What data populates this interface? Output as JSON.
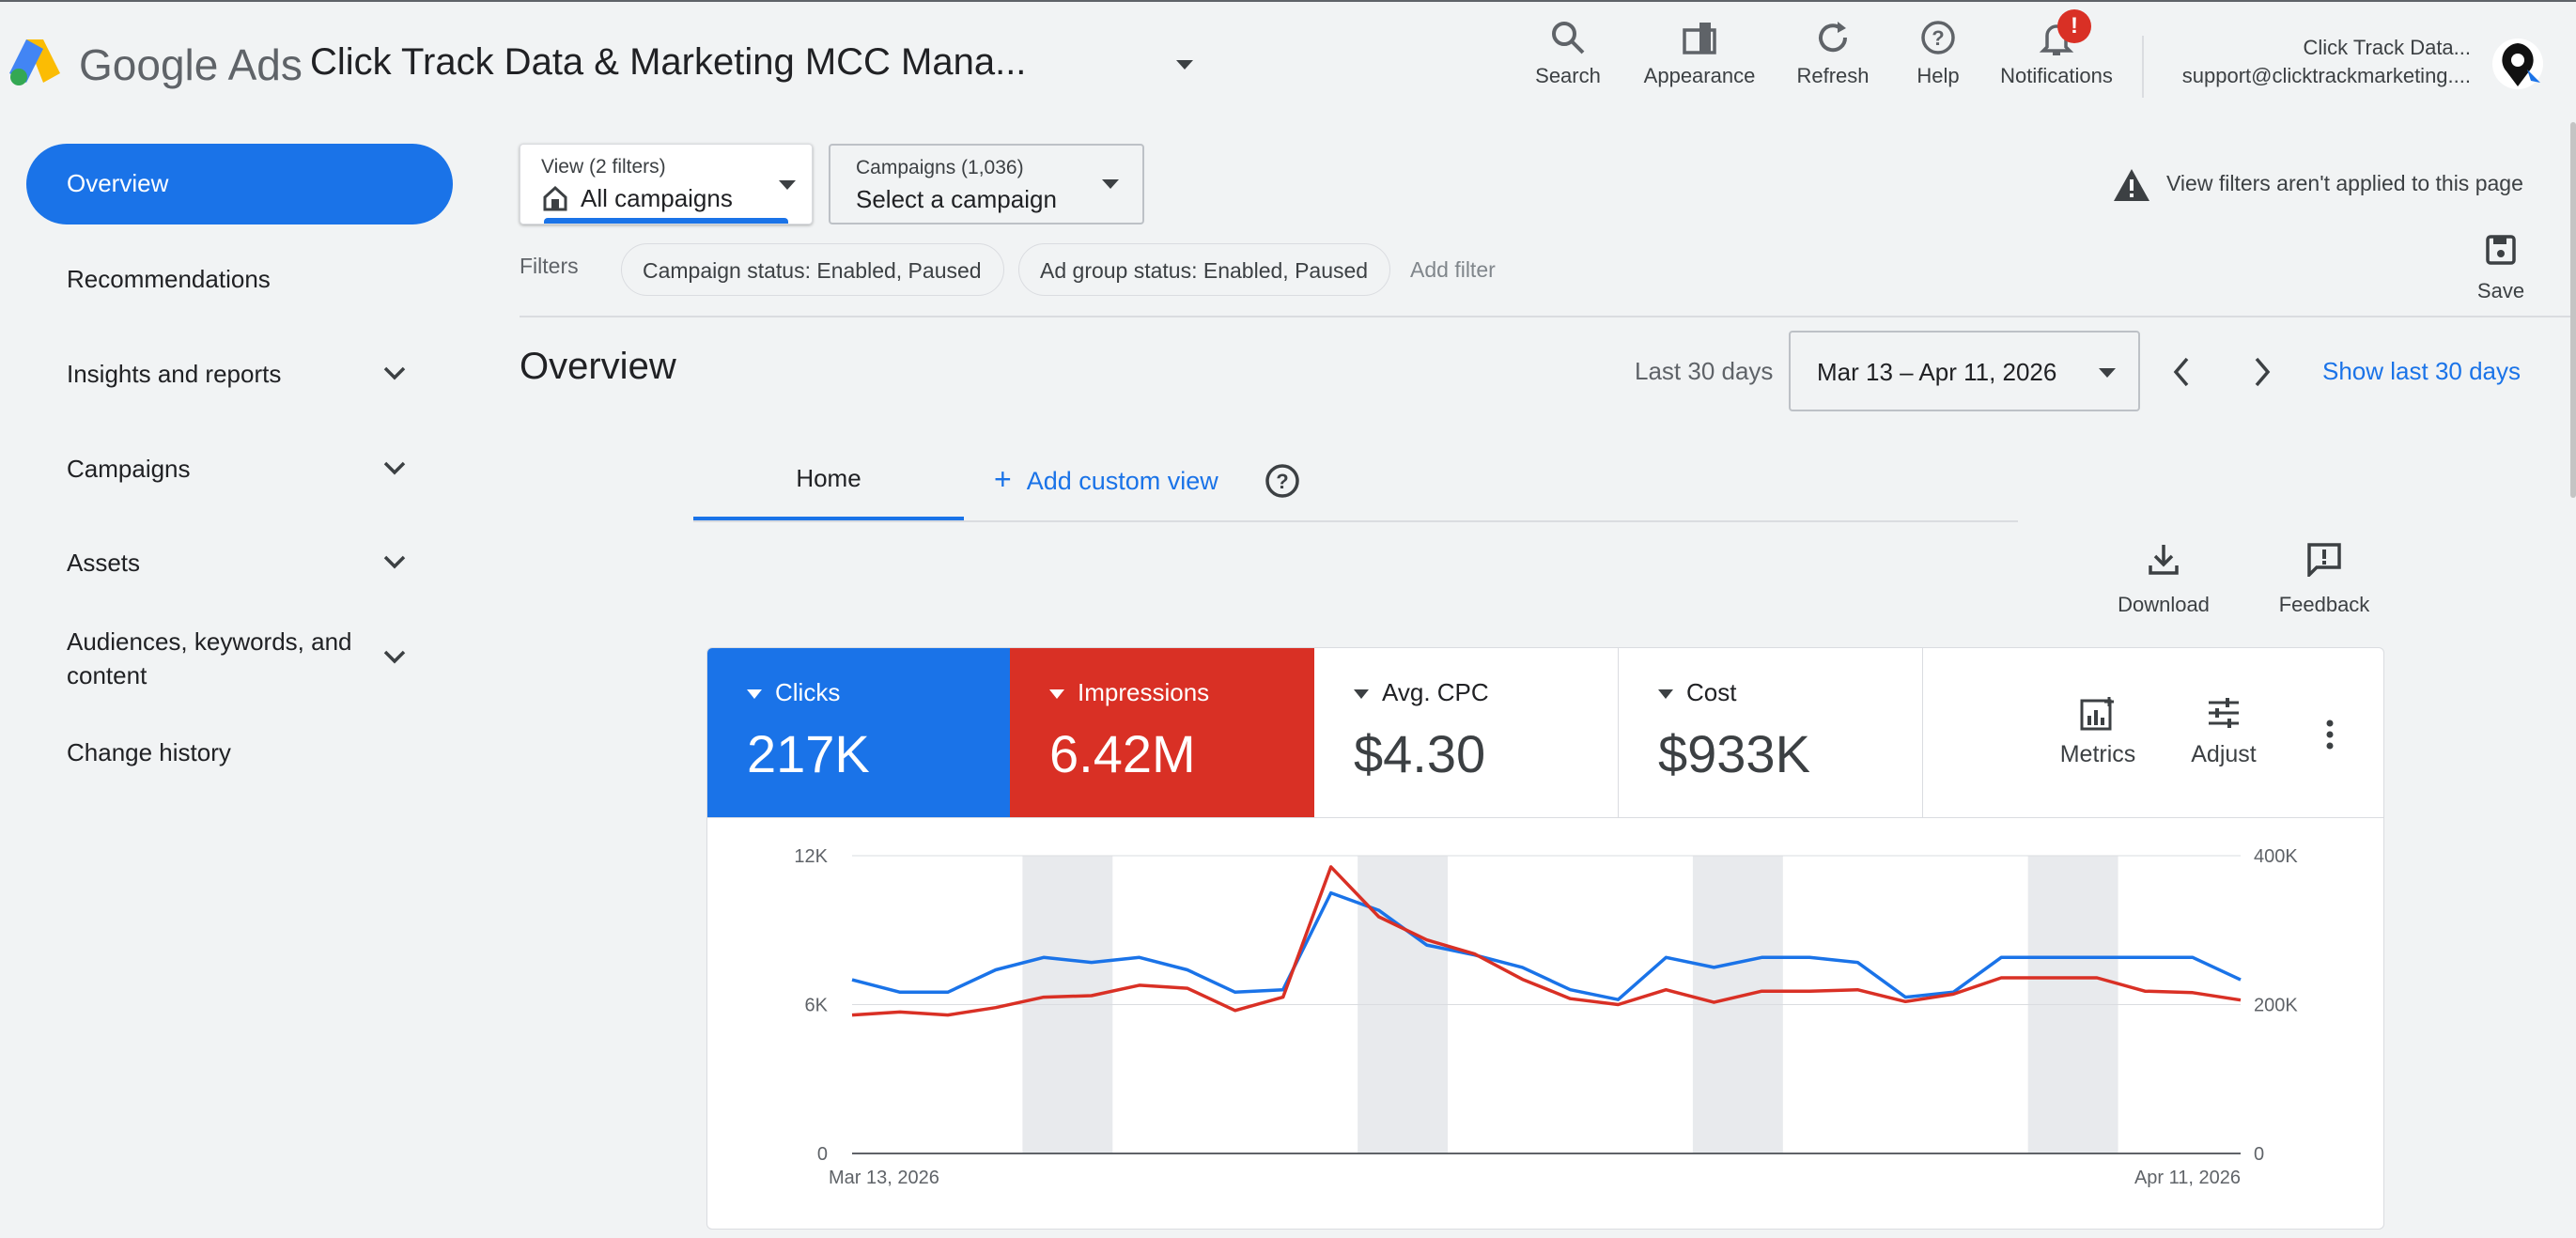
{
  "app": {
    "logo_google": "Google",
    "logo_ads": "Ads",
    "account_title": "Click Track Data & Marketing MCC Mana..."
  },
  "toolbar": {
    "search": "Search",
    "appearance": "Appearance",
    "refresh": "Refresh",
    "help": "Help",
    "notifications": "Notifications",
    "notification_badge": "!"
  },
  "account": {
    "name": "Click Track Data...",
    "email": "support@clicktrackmarketing...."
  },
  "sidebar": {
    "items": [
      {
        "label": "Overview",
        "active": true
      },
      {
        "label": "Recommendations"
      },
      {
        "label": "Insights and reports",
        "expandable": true
      },
      {
        "label": "Campaigns",
        "expandable": true
      },
      {
        "label": "Assets",
        "expandable": true
      },
      {
        "label": "Audiences, keywords, and content",
        "expandable": true
      },
      {
        "label": "Change history"
      }
    ]
  },
  "view_select": {
    "caption": "View (2 filters)",
    "value": "All campaigns"
  },
  "campaign_select": {
    "caption": "Campaigns (1,036)",
    "value": "Select a campaign"
  },
  "notice": {
    "text": "View filters aren't applied to this page"
  },
  "filters": {
    "label": "Filters",
    "chips": [
      "Campaign status: Enabled, Paused",
      "Ad group status: Enabled, Paused"
    ],
    "add": "Add filter",
    "save": "Save"
  },
  "page": {
    "title": "Overview",
    "date_preset": "Last 30 days",
    "date_range": "Mar 13 – Apr 11, 2026",
    "show_last": "Show last 30 days"
  },
  "tabs": {
    "home": "Home",
    "add_custom": "Add custom view"
  },
  "actions": {
    "download": "Download",
    "feedback": "Feedback"
  },
  "metrics": [
    {
      "name": "Clicks",
      "value": "217K",
      "color": "#1a73e8"
    },
    {
      "name": "Impressions",
      "value": "6.42M",
      "color": "#d93025"
    },
    {
      "name": "Avg. CPC",
      "value": "$4.30"
    },
    {
      "name": "Cost",
      "value": "$933K"
    }
  ],
  "metric_tools": {
    "metrics": "Metrics",
    "adjust": "Adjust"
  },
  "chart_data": {
    "type": "line",
    "x": [
      "Mar 13",
      "Mar 14",
      "Mar 15",
      "Mar 16",
      "Mar 17",
      "Mar 18",
      "Mar 19",
      "Mar 20",
      "Mar 21",
      "Mar 22",
      "Mar 23",
      "Mar 24",
      "Mar 25",
      "Mar 26",
      "Mar 27",
      "Mar 28",
      "Mar 29",
      "Mar 30",
      "Mar 31",
      "Apr 1",
      "Apr 2",
      "Apr 3",
      "Apr 4",
      "Apr 5",
      "Apr 6",
      "Apr 7",
      "Apr 8",
      "Apr 9",
      "Apr 10",
      "Apr 11"
    ],
    "x_tick_labels": {
      "first": "Mar 13, 2026",
      "last": "Apr 11, 2026"
    },
    "left_axis": {
      "ticks": [
        "0",
        "6K",
        "12K"
      ],
      "ylim": [
        0,
        12000
      ]
    },
    "right_axis": {
      "ticks": [
        "0",
        "200K",
        "400K"
      ],
      "ylim": [
        0,
        400000
      ]
    },
    "series": [
      {
        "name": "Clicks",
        "axis": "left",
        "color": "#1a73e8",
        "values": [
          7000,
          6500,
          6500,
          7400,
          7900,
          7700,
          7900,
          7400,
          6500,
          6600,
          10500,
          9800,
          8400,
          8000,
          7500,
          6600,
          6200,
          7900,
          7500,
          7900,
          7900,
          7700,
          6300,
          6500,
          7900,
          7900,
          7900,
          7900,
          7900,
          7000
        ]
      },
      {
        "name": "Impressions",
        "axis": "right",
        "color": "#d93025",
        "values": [
          186000,
          190000,
          186000,
          196000,
          210000,
          212000,
          226000,
          222000,
          192000,
          210000,
          385000,
          318000,
          287000,
          268000,
          234000,
          208000,
          200000,
          220000,
          203000,
          218000,
          218000,
          220000,
          204000,
          214000,
          236000,
          236000,
          236000,
          218000,
          216000,
          206000
        ]
      }
    ],
    "weekend_shading": [
      [
        4,
        5
      ],
      [
        11,
        12
      ],
      [
        18,
        19
      ],
      [
        25,
        26
      ]
    ],
    "grid": true
  }
}
